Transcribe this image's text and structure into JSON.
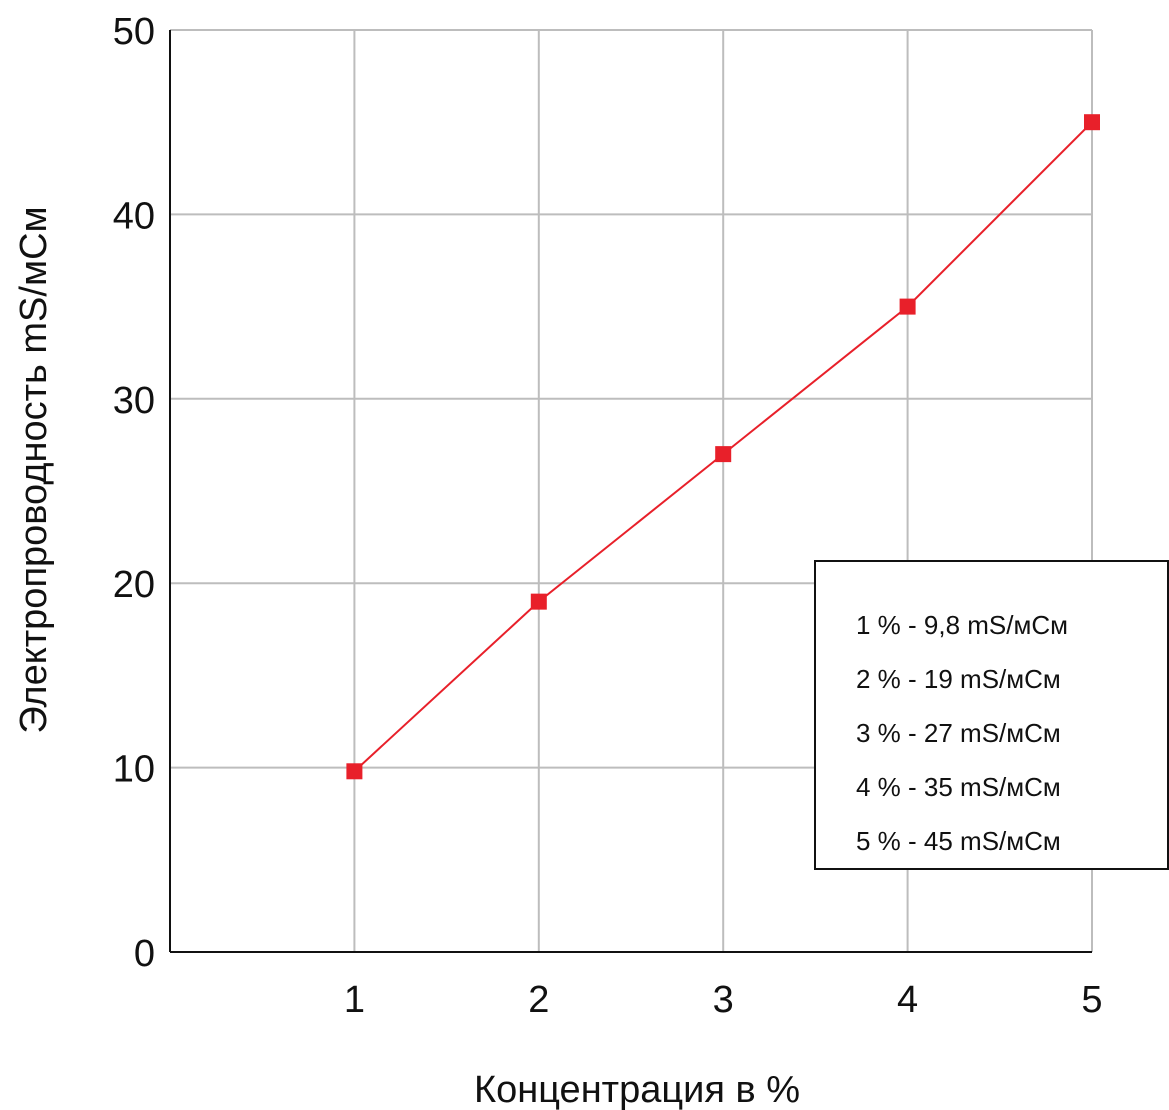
{
  "chart_data": {
    "type": "line",
    "title": "",
    "xlabel": "Концентрация в %",
    "ylabel": "Электропроводность mS/мСм",
    "x": [
      1,
      2,
      3,
      4,
      5
    ],
    "x_ticks": [
      "1",
      "2",
      "3",
      "4",
      "5"
    ],
    "y_ticks": [
      "0",
      "10",
      "20",
      "30",
      "40",
      "50"
    ],
    "xlim": [
      0,
      5
    ],
    "ylim": [
      0,
      50
    ],
    "grid": true,
    "series": [
      {
        "values": [
          9.8,
          19,
          27,
          35,
          45
        ],
        "color": "#e8202a",
        "marker": "square"
      }
    ],
    "legend": {
      "placement": "bottom-right",
      "entries": [
        "1 % - 9,8 mS/мСм",
        "2 % - 19 mS/мСм",
        "3 % - 27 mS/мСм",
        "4 % - 35 mS/мСм",
        "5 % - 45 mS/мСм"
      ]
    }
  }
}
